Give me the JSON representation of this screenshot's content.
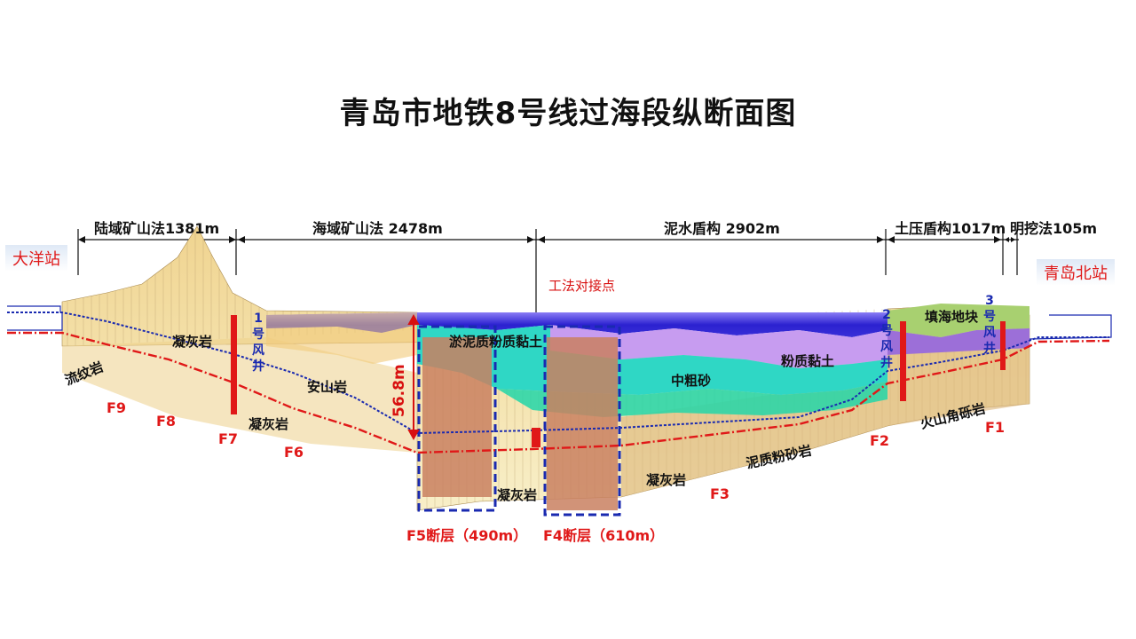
{
  "title": "青岛市地铁8号线过海段纵断面图",
  "stations": {
    "left": "大洋站",
    "right": "青岛北站"
  },
  "segments": [
    {
      "label": "陆域矿山法1381m"
    },
    {
      "label": "海域矿山法 2478m"
    },
    {
      "label": "泥水盾构 2902m"
    },
    {
      "label": "土压盾构1017m"
    },
    {
      "label": "明挖法105m"
    }
  ],
  "junction_label": "工法对接点",
  "depth_label": "56.8m",
  "shafts": [
    {
      "label": "1号风井"
    },
    {
      "label": "2号风井"
    },
    {
      "label": "3号风井"
    }
  ],
  "rock_labels": {
    "liuwenyan": "流纹岩",
    "ninghuiyan_1": "凝灰岩",
    "ninghuiyan_2": "凝灰岩",
    "anshanyan": "安山岩",
    "yuni": "淤泥质粉质黏土",
    "zhongcusha": "中粗砂",
    "fenzhi": "粉质黏土",
    "tianhai": "填海地块",
    "huoshan": "火山角砾岩",
    "nizhi": "泥质粉砂岩",
    "ninghuiyan_3": "凝灰岩",
    "ninghuiyan_4": "凝灰岩"
  },
  "faults": [
    "F9",
    "F8",
    "F7",
    "F6",
    "F3",
    "F2",
    "F1"
  ],
  "fault_zones": {
    "f5": "F5断层（490m）",
    "f4": "F4断层（610m）"
  },
  "colors": {
    "sea": "#3a2fd8",
    "silt": "#2fd7c5",
    "sand": "#22d6a8",
    "clay": "#c79cf0",
    "rock": "#f5e6b0",
    "fault_rock": "#c98060",
    "tunnel_red": "#e01818",
    "tunnel_blue": "#1a2ab0"
  }
}
